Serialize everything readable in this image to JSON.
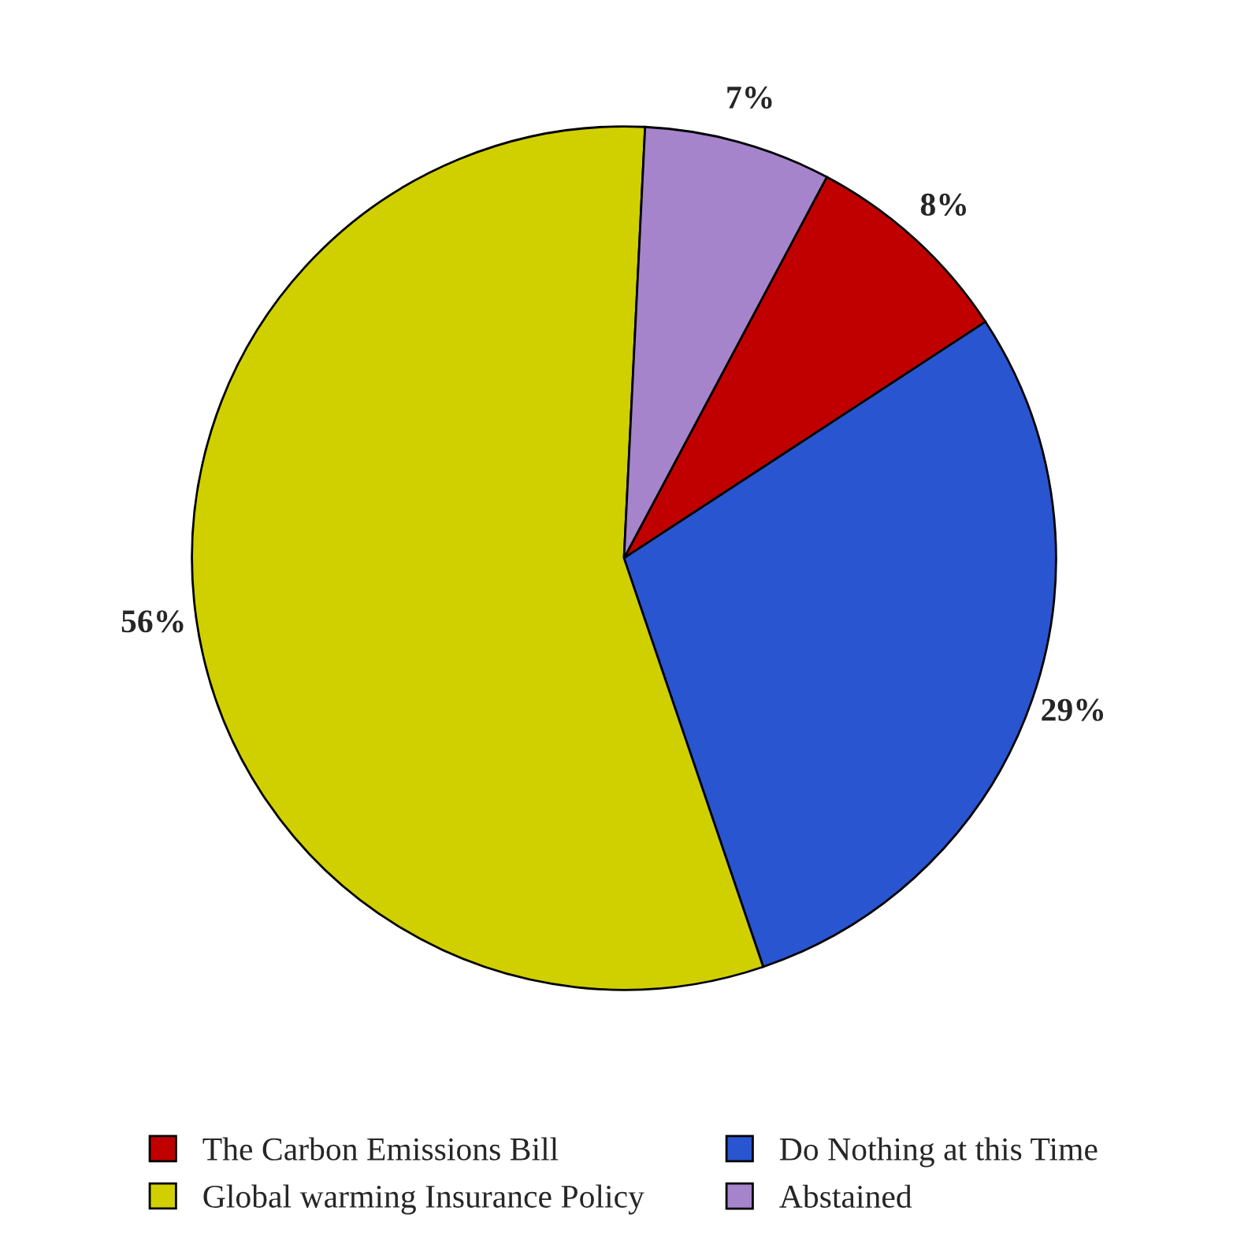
{
  "chart_data": {
    "type": "pie",
    "categories": [
      "The Carbon Emissions Bill",
      "Do Nothing at this Time",
      "Global warming Insurance Policy",
      "Abstained"
    ],
    "values": [
      8,
      29,
      56,
      7
    ],
    "value_labels": [
      "8%",
      "29%",
      "56%",
      "7%"
    ],
    "colors": [
      "#c00000",
      "#2a55d0",
      "#d0d000",
      "#a584cc"
    ],
    "legend": "bottom"
  }
}
